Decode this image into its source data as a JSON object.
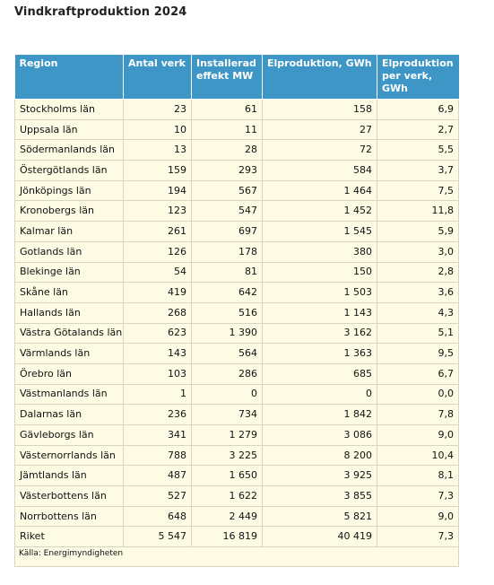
{
  "title": "Vindkraftproduktion 2024",
  "table": {
    "headers": [
      "Region",
      "Antal verk",
      "Installerad effekt MW",
      "Elproduktion, GWh",
      "Elproduktion per verk, GWh"
    ],
    "rows": [
      [
        "Stockholms län",
        "23",
        "61",
        "158",
        "6,9"
      ],
      [
        "Uppsala län",
        "10",
        "11",
        "27",
        "2,7"
      ],
      [
        "Södermanlands län",
        "13",
        "28",
        "72",
        "5,5"
      ],
      [
        "Östergötlands län",
        "159",
        "293",
        "584",
        "3,7"
      ],
      [
        "Jönköpings län",
        "194",
        "567",
        "1 464",
        "7,5"
      ],
      [
        "Kronobergs län",
        "123",
        "547",
        "1 452",
        "11,8"
      ],
      [
        "Kalmar län",
        "261",
        "697",
        "1 545",
        "5,9"
      ],
      [
        "Gotlands län",
        "126",
        "178",
        "380",
        "3,0"
      ],
      [
        "Blekinge län",
        "54",
        "81",
        "150",
        "2,8"
      ],
      [
        "Skåne län",
        "419",
        "642",
        "1 503",
        "3,6"
      ],
      [
        "Hallands län",
        "268",
        "516",
        "1 143",
        "4,3"
      ],
      [
        "Västra Götalands län",
        "623",
        "1 390",
        "3 162",
        "5,1"
      ],
      [
        "Värmlands län",
        "143",
        "564",
        "1 363",
        "9,5"
      ],
      [
        "Örebro län",
        "103",
        "286",
        "685",
        "6,7"
      ],
      [
        "Västmanlands län",
        "1",
        "0",
        "0",
        "0,0"
      ],
      [
        "Dalarnas län",
        "236",
        "734",
        "1 842",
        "7,8"
      ],
      [
        "Gävleborgs län",
        "341",
        "1 279",
        "3 086",
        "9,0"
      ],
      [
        "Västernorrlands län",
        "788",
        "3 225",
        "8 200",
        "10,4"
      ],
      [
        "Jämtlands län",
        "487",
        "1 650",
        "3 925",
        "8,1"
      ],
      [
        "Västerbottens län",
        "527",
        "1 622",
        "3 855",
        "7,3"
      ],
      [
        "Norrbottens län",
        "648",
        "2 449",
        "5 821",
        "9,0"
      ],
      [
        "Riket",
        "5 547",
        "16 819",
        "40 419",
        "7,3"
      ]
    ],
    "source": "Källa: Energimyndigheten"
  }
}
